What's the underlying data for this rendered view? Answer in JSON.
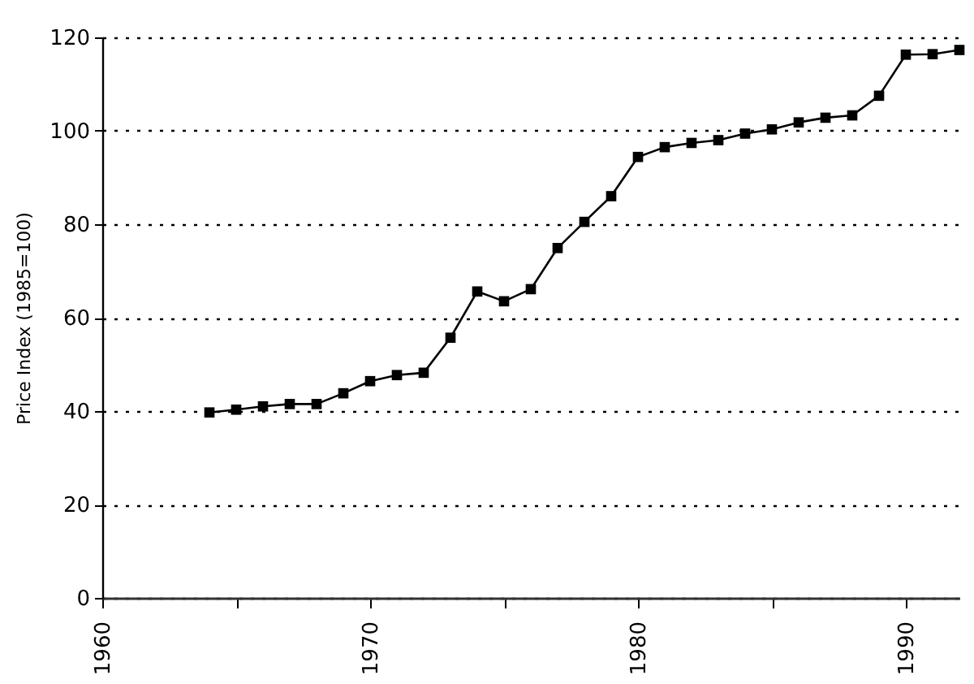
{
  "chart_data": {
    "type": "line",
    "ylabel": "Price Index (1985=100)",
    "x": [
      1964,
      1965,
      1966,
      1967,
      1968,
      1969,
      1970,
      1971,
      1972,
      1973,
      1974,
      1975,
      1976,
      1977,
      1978,
      1979,
      1980,
      1981,
      1982,
      1983,
      1984,
      1985,
      1986,
      1987,
      1988,
      1989,
      1990,
      1991,
      1992
    ],
    "values": [
      39.7,
      40.3,
      41.0,
      41.5,
      41.5,
      43.8,
      46.4,
      47.7,
      48.2,
      55.7,
      65.6,
      63.5,
      66.1,
      74.9,
      80.5,
      86.0,
      94.4,
      96.5,
      97.4,
      98.0,
      99.4,
      100.3,
      101.8,
      102.8,
      103.3,
      107.5,
      116.3,
      116.4,
      117.3
    ],
    "color": "#000000",
    "xlim": [
      1960,
      1992
    ],
    "xticks": [
      1960,
      {
        "value": 1965,
        "label": null
      },
      1970,
      {
        "value": 1975,
        "label": null
      },
      1980,
      {
        "value": 1985,
        "label": null
      },
      1990
    ],
    "ylim": [
      0,
      120
    ],
    "yticks": [
      0,
      20,
      40,
      60,
      80,
      100,
      120
    ],
    "grid": "y",
    "marker": "square",
    "line_style": "solid"
  }
}
